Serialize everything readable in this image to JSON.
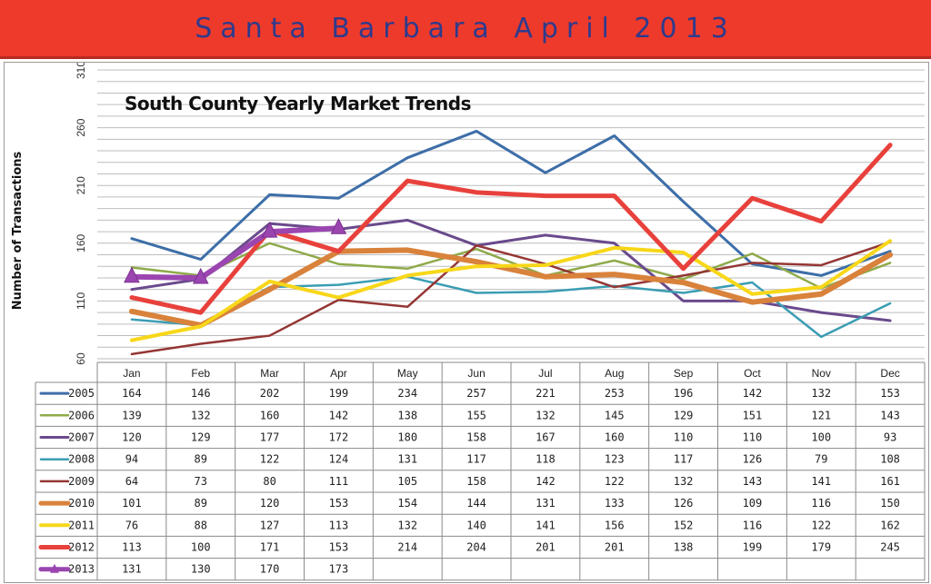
{
  "banner": {
    "title": "Santa Barbara April 2013"
  },
  "chart_data": {
    "type": "line",
    "title": "South County Yearly Market Trends",
    "ylabel": "Number of Transactions",
    "xlabel": "",
    "ylim": [
      60,
      310
    ],
    "yticks": [
      60,
      110,
      160,
      210,
      260,
      310
    ],
    "grid": true,
    "legend": "data table below chart",
    "categories": [
      "Jan",
      "Feb",
      "Mar",
      "Apr",
      "May",
      "Jun",
      "Jul",
      "Aug",
      "Sep",
      "Oct",
      "Nov",
      "Dec"
    ],
    "series": [
      {
        "name": "2005",
        "color": "#3d6ea8",
        "width": 3,
        "values": [
          164,
          146,
          202,
          199,
          234,
          257,
          221,
          253,
          196,
          142,
          132,
          153
        ]
      },
      {
        "name": "2006",
        "color": "#8faa4a",
        "width": 2.5,
        "values": [
          139,
          132,
          160,
          142,
          138,
          155,
          132,
          145,
          129,
          151,
          121,
          143
        ]
      },
      {
        "name": "2007",
        "color": "#6a4a8c",
        "width": 3,
        "values": [
          120,
          129,
          177,
          172,
          180,
          158,
          167,
          160,
          110,
          110,
          100,
          93
        ]
      },
      {
        "name": "2008",
        "color": "#3b9db3",
        "width": 2.5,
        "values": [
          94,
          89,
          122,
          124,
          131,
          117,
          118,
          123,
          117,
          126,
          79,
          108
        ]
      },
      {
        "name": "2009",
        "color": "#943634",
        "width": 2.5,
        "values": [
          64,
          73,
          80,
          111,
          105,
          158,
          142,
          122,
          132,
          143,
          141,
          161
        ]
      },
      {
        "name": "2010",
        "color": "#d9823b",
        "width": 6,
        "values": [
          101,
          89,
          120,
          153,
          154,
          144,
          131,
          133,
          126,
          109,
          116,
          150
        ]
      },
      {
        "name": "2011",
        "color": "#f7d719",
        "width": 4,
        "values": [
          76,
          88,
          127,
          113,
          132,
          140,
          141,
          156,
          152,
          116,
          122,
          162
        ]
      },
      {
        "name": "2012",
        "color": "#e8413c",
        "width": 5,
        "values": [
          113,
          100,
          171,
          153,
          214,
          204,
          201,
          201,
          138,
          199,
          179,
          245
        ]
      },
      {
        "name": "2013",
        "color": "#9b46b0",
        "width": 6,
        "marker": "triangle",
        "values": [
          131,
          130,
          170,
          173,
          null,
          null,
          null,
          null,
          null,
          null,
          null,
          null
        ]
      }
    ]
  }
}
